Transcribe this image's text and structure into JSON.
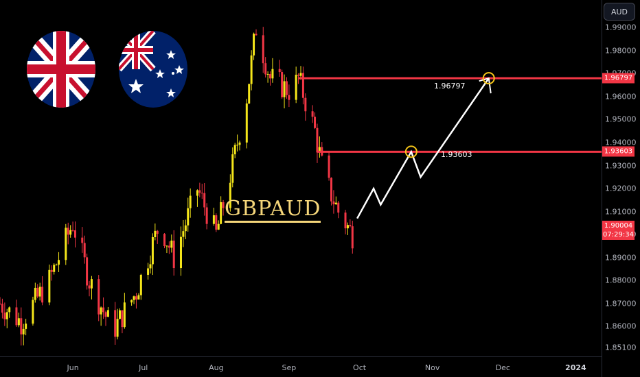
{
  "currency_button": "AUD",
  "symbol_title": "GBPAUD",
  "level_labels": {
    "upper": "1.96797",
    "lower": "1.93603"
  },
  "current": {
    "price": "1.90004",
    "countdown": "07:29:34"
  },
  "flags": {
    "left": "uk-flag-icon",
    "right": "australia-flag-icon"
  },
  "colors": {
    "up": "#f5e61a",
    "down": "#f23645",
    "level_line": "#f23645",
    "target": "#f5c518",
    "path": "#ffffff"
  },
  "chart_data": {
    "type": "candlestick",
    "title": "GBPAUD",
    "y_ticks": [
      "1.99000",
      "1.98000",
      "1.97000",
      "1.96000",
      "1.95000",
      "1.94000",
      "1.93000",
      "1.92000",
      "1.91000",
      "1.90000",
      "1.89000",
      "1.88000",
      "1.87000",
      "1.86000",
      "1.85100"
    ],
    "y_tick_values": [
      1.99,
      1.98,
      1.97,
      1.96,
      1.95,
      1.94,
      1.93,
      1.92,
      1.91,
      1.9,
      1.89,
      1.88,
      1.87,
      1.86,
      1.851
    ],
    "x_ticks": [
      "Jun",
      "Jul",
      "Aug",
      "Sep",
      "Oct",
      "Nov",
      "Dec",
      "2024"
    ],
    "x_tick_dates": [
      "2023-06-01",
      "2023-07-01",
      "2023-08-01",
      "2023-09-01",
      "2023-10-01",
      "2023-11-01",
      "2023-12-01",
      "2024-01-01"
    ],
    "ylim": [
      1.847,
      2.002
    ],
    "xlim": [
      "2023-05-01",
      "2024-01-12"
    ],
    "levels": [
      {
        "value": 1.96797,
        "start": "2023-09-05",
        "end": "2024-01-12"
      },
      {
        "value": 1.93603,
        "start": "2023-09-13",
        "end": "2024-01-12"
      }
    ],
    "projection": [
      {
        "date": "2023-09-30",
        "value": 1.907
      },
      {
        "date": "2023-10-07",
        "value": 1.92
      },
      {
        "date": "2023-10-10",
        "value": 1.913
      },
      {
        "date": "2023-10-23",
        "value": 1.936
      },
      {
        "date": "2023-10-27",
        "value": 1.925
      },
      {
        "date": "2023-11-25",
        "value": 1.96797
      }
    ],
    "target_circles": [
      {
        "date": "2023-10-23",
        "value": 1.93603
      },
      {
        "date": "2023-11-25",
        "value": 1.96797
      }
    ],
    "anchor": {
      "start_date": "2023-05-01",
      "start_value": 1.855,
      "end_date": "2023-09-28",
      "end_value": 1.90004
    }
  }
}
